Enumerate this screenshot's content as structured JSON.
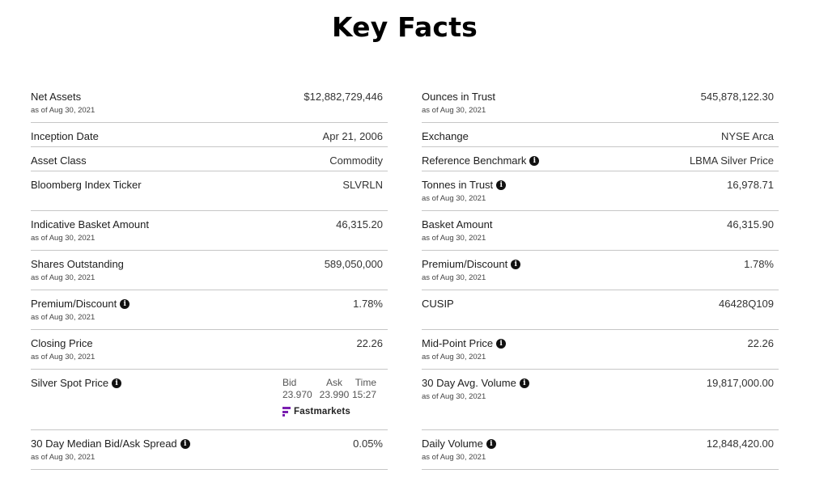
{
  "title": "Key Facts",
  "left": [
    {
      "label": "Net Assets",
      "asof": "as of Aug 30, 2021",
      "value": "$12,882,729,446",
      "info": false
    },
    {
      "label": "Inception Date",
      "asof": "",
      "value": "Apr 21, 2006",
      "info": false
    },
    {
      "label": "Asset Class",
      "asof": "",
      "value": "Commodity",
      "info": false
    },
    {
      "label": "Bloomberg Index Ticker",
      "asof": "",
      "value": "SLVRLN",
      "info": false
    },
    {
      "label": "Indicative Basket Amount",
      "asof": "as of Aug 30, 2021",
      "value": "46,315.20",
      "info": false
    },
    {
      "label": "Shares Outstanding",
      "asof": "as of Aug 30, 2021",
      "value": "589,050,000",
      "info": false
    },
    {
      "label": "Premium/Discount",
      "asof": "as of Aug 30, 2021",
      "value": "1.78%",
      "info": true
    },
    {
      "label": "Closing Price",
      "asof": "as of Aug 30, 2021",
      "value": "22.26",
      "info": false
    },
    {
      "label": "Silver Spot Price",
      "asof": "",
      "value": "",
      "info": true
    },
    {
      "label": "30 Day Median Bid/Ask Spread",
      "asof": "as of Aug 30, 2021",
      "value": "0.05%",
      "info": true
    }
  ],
  "spot": {
    "bid_label": "Bid",
    "ask_label": "Ask",
    "time_label": "Time",
    "bid": "23.970",
    "ask": "23.990",
    "time": "15:27",
    "provider": "Fastmarkets"
  },
  "right": [
    {
      "label": "Ounces in Trust",
      "asof": "as of Aug 30, 2021",
      "value": "545,878,122.30",
      "info": false
    },
    {
      "label": "Exchange",
      "asof": "",
      "value": "NYSE Arca",
      "info": false
    },
    {
      "label": "Reference Benchmark",
      "asof": "",
      "value": "LBMA Silver Price",
      "info": true
    },
    {
      "label": "Tonnes in Trust",
      "asof": "as of Aug 30, 2021",
      "value": "16,978.71",
      "info": true
    },
    {
      "label": "Basket Amount",
      "asof": "as of Aug 30, 2021",
      "value": "46,315.90",
      "info": false
    },
    {
      "label": "Premium/Discount",
      "asof": "as of Aug 30, 2021",
      "value": "1.78%",
      "info": true
    },
    {
      "label": "CUSIP",
      "asof": "",
      "value": "46428Q109",
      "info": false
    },
    {
      "label": "Mid-Point Price",
      "asof": "as of Aug 30, 2021",
      "value": "22.26",
      "info": true
    },
    {
      "label": "30 Day Avg. Volume",
      "asof": "as of Aug 30, 2021",
      "value": "19,817,000.00",
      "info": true
    },
    {
      "label": "Daily Volume",
      "asof": "as of Aug 30, 2021",
      "value": "12,848,420.00",
      "info": true
    }
  ],
  "colors": {
    "fastmarkets_brand": "#7a1fb0",
    "divider": "#c6c6c6"
  },
  "icons": {
    "info": "info-circle-icon",
    "provider_logo": "fastmarkets-logo-icon"
  }
}
